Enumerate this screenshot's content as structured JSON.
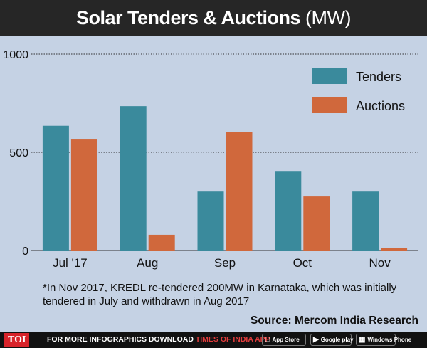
{
  "title": {
    "main": "Solar Tenders & Auctions",
    "unit": "(MW)"
  },
  "chart_data": {
    "type": "bar",
    "categories": [
      "Jul '17",
      "Aug",
      "Sep",
      "Oct",
      "Nov"
    ],
    "series": [
      {
        "name": "Tenders",
        "color": "#3a8a9c",
        "values": [
          635,
          735,
          300,
          405,
          300
        ]
      },
      {
        "name": "Auctions",
        "color": "#d0683c",
        "values": [
          565,
          80,
          605,
          275,
          12
        ]
      }
    ],
    "ylim": [
      0,
      1000
    ],
    "yticks": [
      0,
      500,
      1000
    ],
    "legend": "top-right",
    "grid": "dotted-horizontal"
  },
  "footnote": "*In Nov 2017, KREDL re-tendered 200MW in Karnataka, which was initially tendered in July and withdrawn in Aug 2017",
  "source": "Source: Mercom India Research",
  "footer": {
    "logo": "TOI",
    "promo_text": "FOR MORE  INFOGRAPHICS DOWNLOAD",
    "promo_brand": "TIMES OF INDIA  APP",
    "app_store_small": "Available on the",
    "app_store": "App Store",
    "google_play": "Google play",
    "windows_phone": "Windows Phone"
  }
}
